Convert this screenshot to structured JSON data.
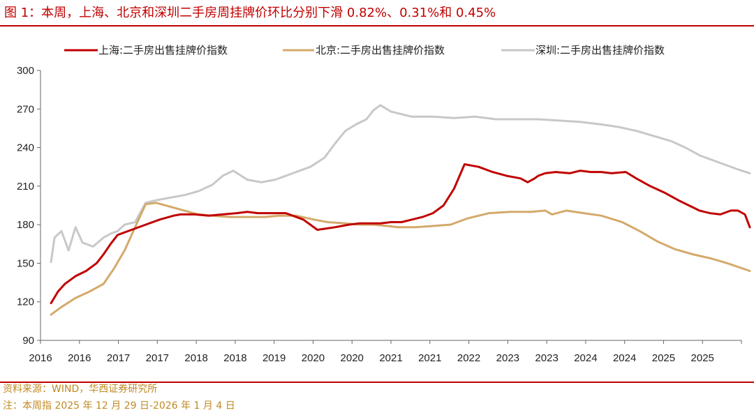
{
  "header": {
    "title": "图 1：本周，上海、北京和深圳二手房周挂牌价环比分别下滑 0.82%、0.31%和 0.45%"
  },
  "footer": {
    "source": "资料来源：WIND，华西证券研究所",
    "note": "注：本周指 2025 年 12 月 29 日-2026 年 1 月 4 日"
  },
  "colors": {
    "accent": "#c00000",
    "shanghai": "#c00000",
    "beijing": "#d4a96a",
    "shenzhen": "#c8c8c8",
    "footer_text": "#c08a24"
  },
  "chart_data": {
    "type": "line",
    "ylim": [
      90,
      300
    ],
    "yticks": [
      90,
      120,
      150,
      180,
      210,
      240,
      270,
      300
    ],
    "xlim": [
      2016.0,
      2026.0
    ],
    "xtick_labels": [
      "2016",
      "2016",
      "2017",
      "2017",
      "2018",
      "2018",
      "2019",
      "2020",
      "2020",
      "2021",
      "2021",
      "2022",
      "2023",
      "2023",
      "2024",
      "2024",
      "2025",
      "2025"
    ],
    "grid": false,
    "legend_position": "top",
    "series": [
      {
        "name": "上海:二手房出售挂牌价指数",
        "color": "#c00000",
        "x": [
          2016.15,
          2016.25,
          2016.35,
          2016.5,
          2016.65,
          2016.8,
          2016.9,
          2017.0,
          2017.1,
          2017.3,
          2017.5,
          2017.7,
          2017.9,
          2018.0,
          2018.2,
          2018.4,
          2018.6,
          2018.8,
          2018.95,
          2019.1,
          2019.3,
          2019.5,
          2019.75,
          2019.95,
          2020.2,
          2020.4,
          2020.55,
          2020.7,
          2020.85,
          2021.0,
          2021.15,
          2021.3,
          2021.45,
          2021.6,
          2021.75,
          2021.9,
          2022.05,
          2022.25,
          2022.45,
          2022.65,
          2022.85,
          2022.95,
          2023.05,
          2023.1,
          2023.2,
          2023.35,
          2023.55,
          2023.7,
          2023.85,
          2024.0,
          2024.15,
          2024.35,
          2024.5,
          2024.7,
          2024.9,
          2025.1,
          2025.25,
          2025.4,
          2025.55,
          2025.7,
          2025.85,
          2025.95,
          2026.05,
          2026.12
        ],
        "values": [
          119,
          128,
          134,
          140,
          144,
          150,
          157,
          165,
          172,
          176,
          180,
          184,
          187,
          188,
          188,
          187,
          188,
          189,
          190,
          189,
          189,
          189,
          184,
          176,
          178,
          180,
          181,
          181,
          181,
          182,
          182,
          184,
          186,
          189,
          195,
          208,
          227,
          225,
          221,
          218,
          216,
          213,
          216,
          218,
          220,
          221,
          220,
          222,
          221,
          221,
          220,
          221,
          216,
          210,
          205,
          199,
          195,
          191,
          189,
          188,
          191,
          191,
          188,
          178
        ]
      },
      {
        "name": "北京:二手房出售挂牌价指数",
        "color": "#d4a96a",
        "x": [
          2016.15,
          2016.3,
          2016.5,
          2016.7,
          2016.9,
          2017.05,
          2017.2,
          2017.35,
          2017.5,
          2017.65,
          2017.85,
          2018.05,
          2018.25,
          2018.45,
          2018.7,
          2018.95,
          2019.2,
          2019.4,
          2019.65,
          2019.9,
          2020.1,
          2020.35,
          2020.55,
          2020.75,
          2020.95,
          2021.1,
          2021.35,
          2021.6,
          2021.85,
          2022.1,
          2022.4,
          2022.7,
          2023.0,
          2023.2,
          2023.3,
          2023.5,
          2023.75,
          2024.0,
          2024.3,
          2024.55,
          2024.8,
          2025.05,
          2025.3,
          2025.55,
          2025.8,
          2026.12
        ],
        "values": [
          110,
          116,
          123,
          128,
          134,
          146,
          160,
          178,
          196,
          197,
          194,
          191,
          188,
          187,
          186,
          186,
          186,
          187,
          187,
          184,
          182,
          181,
          180,
          180,
          179,
          178,
          178,
          179,
          180,
          185,
          189,
          190,
          190,
          191,
          188,
          191,
          189,
          187,
          182,
          175,
          167,
          161,
          157,
          154,
          150,
          144
        ]
      },
      {
        "name": "深圳:二手房出售挂牌价指数",
        "color": "#c8c8c8",
        "x": [
          2016.15,
          2016.2,
          2016.3,
          2016.4,
          2016.5,
          2016.6,
          2016.75,
          2016.9,
          2017.0,
          2017.1,
          2017.2,
          2017.35,
          2017.5,
          2017.65,
          2017.85,
          2018.05,
          2018.25,
          2018.45,
          2018.6,
          2018.75,
          2018.95,
          2019.15,
          2019.35,
          2019.6,
          2019.85,
          2020.05,
          2020.2,
          2020.35,
          2020.5,
          2020.65,
          2020.75,
          2020.85,
          2021.0,
          2021.3,
          2021.6,
          2021.9,
          2022.2,
          2022.5,
          2022.8,
          2023.1,
          2023.4,
          2023.7,
          2024.0,
          2024.25,
          2024.5,
          2024.75,
          2025.0,
          2025.2,
          2025.4,
          2025.6,
          2025.8,
          2025.95,
          2026.12
        ],
        "values": [
          151,
          170,
          175,
          160,
          178,
          166,
          163,
          170,
          173,
          175,
          180,
          182,
          197,
          199,
          201,
          203,
          206,
          211,
          218,
          222,
          215,
          213,
          215,
          220,
          225,
          232,
          243,
          253,
          258,
          262,
          269,
          273,
          268,
          264,
          264,
          263,
          264,
          262,
          262,
          262,
          261,
          260,
          258,
          256,
          253,
          249,
          245,
          240,
          234,
          230,
          226,
          223,
          220
        ]
      }
    ]
  }
}
